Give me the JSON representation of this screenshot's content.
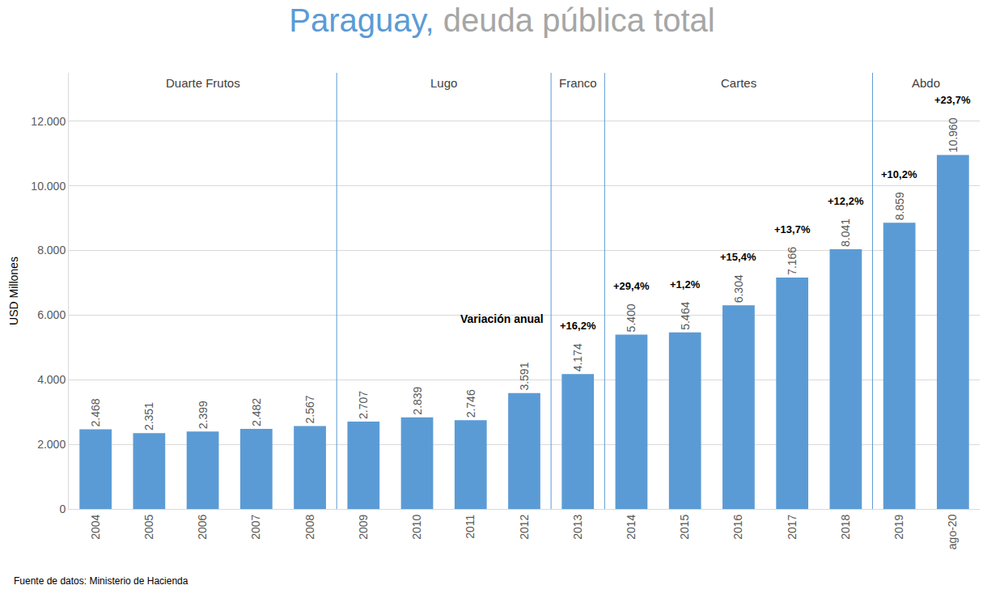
{
  "chart_data": {
    "type": "bar",
    "title": "Paraguay, deuda pública total",
    "y_label": "USD Millones",
    "source": "Fuente de datos: Ministerio de Hacienda",
    "categories": [
      "2004",
      "2005",
      "2006",
      "2007",
      "2008",
      "2009",
      "2010",
      "2011",
      "2012",
      "2013",
      "2014",
      "2015",
      "2016",
      "2017",
      "2018",
      "2019",
      "ago-20"
    ],
    "values": [
      2468,
      2351,
      2399,
      2482,
      2567,
      2707,
      2839,
      2746,
      3591,
      4174,
      5400,
      5464,
      6304,
      7166,
      8041,
      8859,
      10960
    ],
    "value_labels": [
      "2.468",
      "2.351",
      "2.399",
      "2.482",
      "2.567",
      "2.707",
      "2.839",
      "2.746",
      "3.591",
      "4.174",
      "5.400",
      "5.464",
      "6.304",
      "7.166",
      "8.041",
      "8.859",
      "10.960"
    ],
    "color": "#5b9bd5",
    "data_labels": true,
    "grid": true,
    "ylim": [
      0,
      13500
    ],
    "yticks": [
      0,
      {
        "value": 2000,
        "label": "2.000"
      },
      {
        "value": 4000,
        "label": "4.000"
      },
      {
        "value": 6000,
        "label": "6.000"
      },
      {
        "value": 8000,
        "label": "8.000"
      },
      {
        "value": 10000,
        "label": "10.000"
      },
      {
        "value": 12000,
        "label": "12.000"
      }
    ],
    "annual_variation": {
      "label": "Variación anual",
      "values": [
        null,
        null,
        null,
        null,
        null,
        null,
        null,
        null,
        null,
        16.2,
        29.4,
        1.2,
        15.4,
        13.7,
        12.2,
        10.2,
        23.7
      ],
      "value_labels": [
        null,
        null,
        null,
        null,
        null,
        null,
        null,
        null,
        null,
        "+16,2%",
        "+29,4%",
        "+1,2%",
        "+15,4%",
        "+13,7%",
        "+12,2%",
        "+10,2%",
        "+23,7%"
      ]
    },
    "periods": [
      {
        "label": "Duarte Frutos",
        "from": "2004",
        "to": "2008"
      },
      {
        "label": "Lugo",
        "from": "2009",
        "to": "2012"
      },
      {
        "label": "Franco",
        "from": "2013",
        "to": "2013"
      },
      {
        "label": "Cartes",
        "from": "2014",
        "to": "2018"
      },
      {
        "label": "Abdo",
        "from": "2019",
        "to": "ago-20"
      }
    ]
  }
}
